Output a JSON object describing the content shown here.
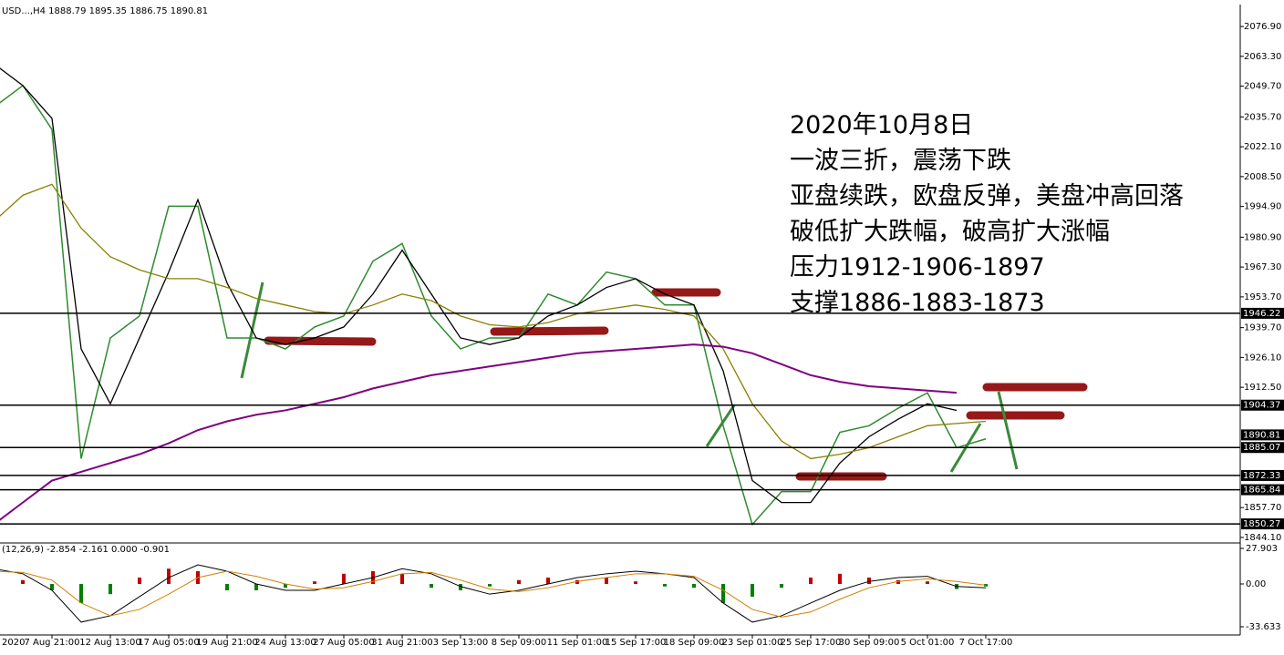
{
  "chart_data": {
    "type": "line",
    "title": "USD...,H4 1888.79 1895.35 1886.75 1890.81",
    "annotations": [
      "2020年10月8日",
      "一波三折，震荡下跌",
      "亚盘续跌，欧盘反弹，美盘冲高回落",
      "破低扩大跌幅，破高扩大涨幅",
      "压力1912-1906-1897",
      "支撑1886-1883-1873"
    ],
    "categories": [
      "2020",
      null,
      "7 Aug 21:00",
      null,
      "12 Aug 13:00",
      null,
      "17 Aug 05:00",
      null,
      "19 Aug 21:00",
      null,
      "24 Aug 13:00",
      null,
      "27 Aug 05:00",
      null,
      "31 Aug 21:00",
      null,
      "3 Sep 13:00",
      null,
      "8 Sep 09:00",
      null,
      "11 Sep 01:00",
      null,
      "15 Sep 17:00",
      null,
      "18 Sep 09:00",
      null,
      "23 Sep 01:00",
      null,
      "25 Sep 17:00",
      null,
      "30 Sep 09:00",
      null,
      "5 Oct 01:00",
      null,
      "7 Oct 17:00"
    ],
    "series": [
      {
        "color": "#2e8b2e",
        "width": 1.5,
        "values": [
          2040,
          2050,
          2030,
          1880,
          1935,
          1945,
          1995,
          1995,
          1935,
          1935,
          1930,
          1940,
          1945,
          1970,
          1978,
          1945,
          1930,
          1935,
          1935,
          1955,
          1950,
          1965,
          1962,
          1950,
          1950,
          1895,
          1850,
          1865,
          1865,
          1892,
          1895,
          1903,
          1910,
          1885,
          1889
        ]
      },
      {
        "color": "#000000",
        "width": 1.3,
        "values": [
          2060,
          2050,
          2035,
          1930,
          1905,
          1935,
          1965,
          1998,
          1960,
          1935,
          1932,
          1935,
          1940,
          1955,
          1975,
          1955,
          1935,
          1932,
          1935,
          1945,
          1950,
          1958,
          1962,
          1955,
          1950,
          1920,
          1870,
          1860,
          1860,
          1878,
          1890,
          1898,
          1905,
          1902,
          null
        ]
      },
      {
        "color": "#8b8000",
        "width": 1.3,
        "values": [
          1988,
          2000,
          2005,
          1985,
          1972,
          1966,
          1962,
          1962,
          1958,
          1953,
          1950,
          1947,
          1946,
          1950,
          1955,
          1952,
          1945,
          1941,
          1940,
          1942,
          1946,
          1948,
          1950,
          1948,
          1945,
          1930,
          1905,
          1888,
          1880,
          1882,
          1885,
          1890,
          1895,
          1896,
          1897
        ]
      },
      {
        "color": "#800080",
        "width": 2,
        "values": [
          1850,
          1860,
          1870,
          1874,
          1878,
          1882,
          1887,
          1893,
          1897,
          1900,
          1902,
          1905,
          1908,
          1912,
          1915,
          1918,
          1920,
          1922,
          1924,
          1926,
          1928,
          1929,
          1930,
          1931,
          1932,
          1931,
          1928,
          1923,
          1918,
          1915,
          1913,
          1912,
          1911,
          1910,
          null
        ]
      }
    ],
    "ylim": [
      1842.0,
      2086.9
    ],
    "yticks": [
      {
        "value": 2076.9,
        "label": "2076.90"
      },
      {
        "value": 2063.3,
        "label": "2063.30"
      },
      {
        "value": 2049.7,
        "label": "2049.70"
      },
      {
        "value": 2035.7,
        "label": "2035.70"
      },
      {
        "value": 2022.1,
        "label": "2022.10"
      },
      {
        "value": 2008.5,
        "label": "2008.50"
      },
      {
        "value": 1994.9,
        "label": "1994.90"
      },
      {
        "value": 1980.9,
        "label": "1980.90"
      },
      {
        "value": 1967.3,
        "label": "1967.30"
      },
      {
        "value": 1953.7,
        "label": "1953.70"
      },
      {
        "value": 1939.7,
        "label": "1939.70"
      },
      {
        "value": 1926.1,
        "label": "1926.10"
      },
      {
        "value": 1912.5,
        "label": "1912.50"
      },
      {
        "value": 1857.7,
        "label": "1857.70"
      },
      {
        "value": 1844.1,
        "label": "1844.10"
      }
    ],
    "levels": [
      {
        "value": 1946.22,
        "label": "1946.22"
      },
      {
        "value": 1904.37,
        "label": "1904.37"
      },
      {
        "value": 1885.07,
        "label": "1885.07"
      },
      {
        "value": 1872.33,
        "label": "1872.33"
      },
      {
        "value": 1865.84,
        "label": "1865.84"
      },
      {
        "value": 1850.27,
        "label": "1850.27"
      }
    ],
    "current_price": {
      "value": 1890.81,
      "label": "1890.81"
    },
    "indicator": {
      "title": "(12,26,9) -2.854 -2.161 0.000 -0.901",
      "ylim": [
        -40.07,
        31.48
      ],
      "yticks": [
        27.903,
        {
          "value": 0,
          "label": "0.00"
        },
        -33.633
      ],
      "up_color": "#c00000",
      "down_color": "#008000",
      "histogram": [
        5,
        3,
        -5,
        -15,
        -8,
        5,
        12,
        10,
        -5,
        -5,
        -3,
        2,
        8,
        10,
        8,
        -3,
        -5,
        -2,
        3,
        5,
        3,
        5,
        2,
        -2,
        -3,
        -15,
        -10,
        -3,
        5,
        8,
        5,
        3,
        2,
        -4,
        -2
      ],
      "series": [
        {
          "color": "#000000",
          "values": [
            12,
            8,
            -5,
            -30,
            -25,
            -10,
            5,
            15,
            10,
            0,
            -5,
            -5,
            0,
            5,
            12,
            8,
            -2,
            -8,
            -5,
            0,
            5,
            8,
            10,
            8,
            5,
            -15,
            -30,
            -25,
            -15,
            -5,
            2,
            5,
            6,
            -2,
            -3
          ]
        },
        {
          "color": "#d08000",
          "values": [
            10,
            9,
            3,
            -15,
            -25,
            -20,
            -8,
            5,
            10,
            6,
            0,
            -4,
            -3,
            2,
            8,
            9,
            3,
            -4,
            -6,
            -3,
            2,
            5,
            8,
            8,
            6,
            -5,
            -20,
            -26,
            -22,
            -12,
            -3,
            2,
            4,
            2,
            -1
          ]
        }
      ]
    }
  }
}
